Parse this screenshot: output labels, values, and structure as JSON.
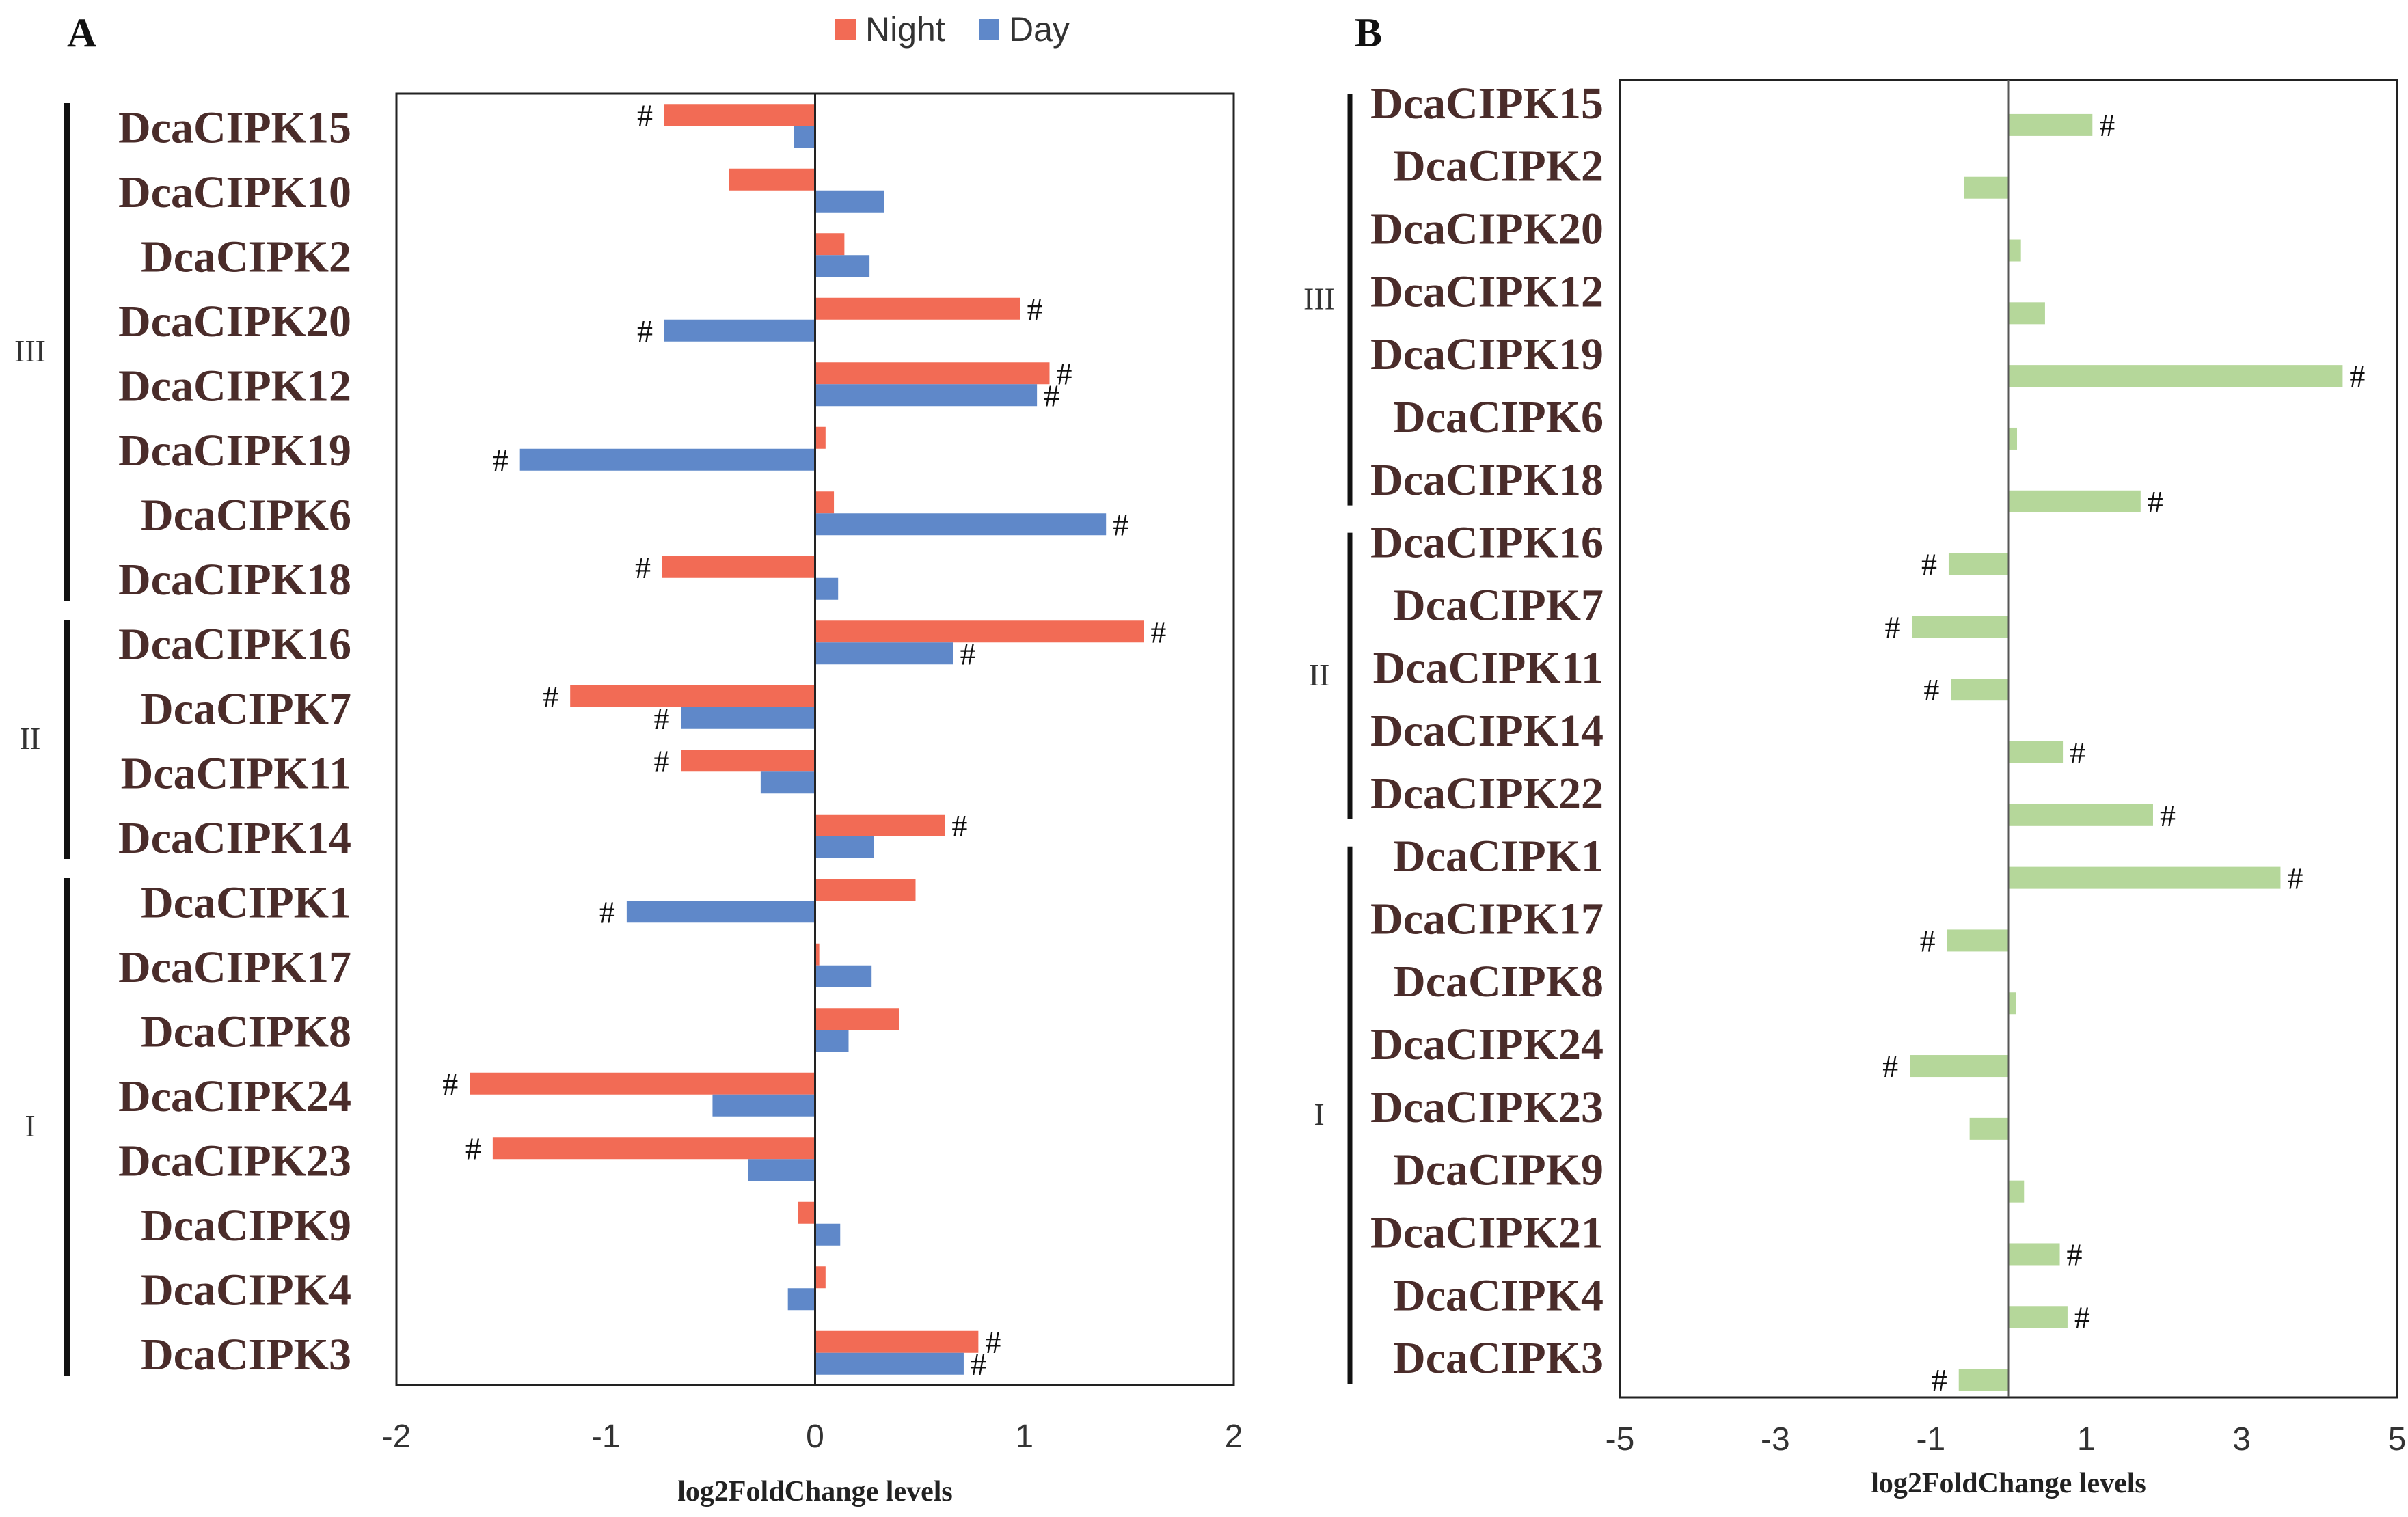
{
  "chart_data": [
    {
      "type": "bar",
      "orientation": "horizontal",
      "panel_label": "A",
      "xlabel": "log2FoldChange levels",
      "xlim": [
        -2,
        2
      ],
      "xticks": [
        "-2",
        "-1",
        "0",
        "1",
        "2"
      ],
      "legend": [
        {
          "name": "Night",
          "color": "#f26b55"
        },
        {
          "name": "Day",
          "color": "#5f88c9"
        }
      ],
      "groups": [
        {
          "label": "III",
          "start": 0,
          "end": 7
        },
        {
          "label": "II",
          "start": 8,
          "end": 11
        },
        {
          "label": "I",
          "start": 12,
          "end": 19
        }
      ],
      "categories": [
        "DcaCIPK15",
        "DcaCIPK10",
        "DcaCIPK2",
        "DcaCIPK20",
        "DcaCIPK12",
        "DcaCIPK19",
        "DcaCIPK6",
        "DcaCIPK18",
        "DcaCIPK16",
        "DcaCIPK7",
        "DcaCIPK11",
        "DcaCIPK14",
        "DcaCIPK1",
        "DcaCIPK17",
        "DcaCIPK8",
        "DcaCIPK24",
        "DcaCIPK23",
        "DcaCIPK9",
        "DcaCIPK4",
        "DcaCIPK3"
      ],
      "series": [
        {
          "name": "Night",
          "color": "#f26b55",
          "values": [
            -0.72,
            -0.41,
            0.14,
            0.98,
            1.12,
            0.05,
            0.09,
            -0.73,
            1.57,
            -1.17,
            -0.64,
            0.62,
            0.48,
            0.02,
            0.4,
            -1.65,
            -1.54,
            -0.08,
            0.05,
            0.78
          ],
          "significant": [
            true,
            false,
            false,
            true,
            true,
            false,
            false,
            true,
            true,
            true,
            true,
            true,
            false,
            false,
            false,
            true,
            true,
            false,
            false,
            true
          ]
        },
        {
          "name": "Day",
          "color": "#5f88c9",
          "values": [
            -0.1,
            0.33,
            0.26,
            -0.72,
            1.06,
            -1.41,
            1.39,
            0.11,
            0.66,
            -0.64,
            -0.26,
            0.28,
            -0.9,
            0.27,
            0.16,
            -0.49,
            -0.32,
            0.12,
            -0.13,
            0.71
          ],
          "significant": [
            false,
            false,
            false,
            true,
            true,
            true,
            true,
            false,
            true,
            true,
            false,
            false,
            true,
            false,
            false,
            false,
            false,
            false,
            false,
            true
          ]
        }
      ],
      "marker": "#"
    },
    {
      "type": "bar",
      "orientation": "horizontal",
      "panel_label": "B",
      "xlabel": "log2FoldChange levels",
      "xlim": [
        -5,
        5
      ],
      "xticks": [
        "-5",
        "-3",
        "-1",
        "1",
        "3",
        "5"
      ],
      "groups": [
        {
          "label": "III",
          "start": 0,
          "end": 6
        },
        {
          "label": "II",
          "start": 7,
          "end": 11
        },
        {
          "label": "I",
          "start": 12,
          "end": 20
        }
      ],
      "categories": [
        "DcaCIPK15",
        "DcaCIPK2",
        "DcaCIPK20",
        "DcaCIPK12",
        "DcaCIPK19",
        "DcaCIPK6",
        "DcaCIPK18",
        "DcaCIPK16",
        "DcaCIPK7",
        "DcaCIPK11",
        "DcaCIPK14",
        "DcaCIPK22",
        "DcaCIPK1",
        "DcaCIPK17",
        "DcaCIPK8",
        "DcaCIPK24",
        "DcaCIPK23",
        "DcaCIPK9",
        "DcaCIPK21",
        "DcaCIPK4",
        "DcaCIPK3"
      ],
      "series": [
        {
          "name": "log2FoldChange",
          "color": "#b5d79a",
          "values": [
            1.08,
            -0.57,
            0.16,
            0.47,
            4.3,
            0.11,
            1.7,
            -0.77,
            -1.24,
            -0.74,
            0.7,
            1.86,
            3.5,
            -0.79,
            0.1,
            -1.27,
            -0.5,
            0.2,
            0.66,
            0.76,
            -0.64
          ],
          "significant": [
            true,
            false,
            false,
            false,
            true,
            false,
            true,
            true,
            true,
            true,
            true,
            true,
            true,
            true,
            false,
            true,
            false,
            false,
            true,
            true,
            true
          ]
        }
      ],
      "marker": "#"
    }
  ]
}
